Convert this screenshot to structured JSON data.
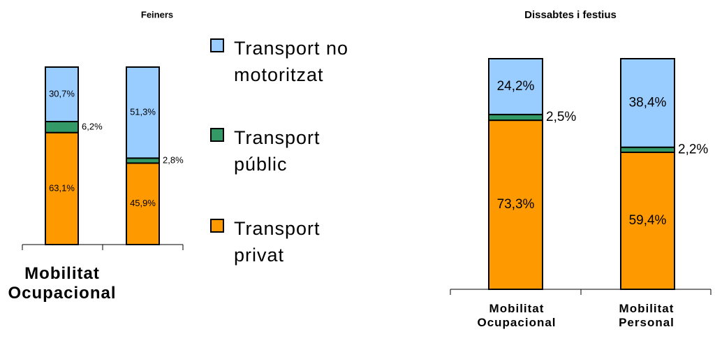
{
  "chart_data": [
    {
      "type": "stacked_bar",
      "title": "Feiners",
      "categories": [
        "Mobilitat Ocupacional",
        null
      ],
      "ylim": [
        0,
        100
      ],
      "series": [
        {
          "name": "Transport privat",
          "color": "#ff9900",
          "values": [
            63.1,
            45.9
          ],
          "value_labels": [
            "63,1%",
            "45,9%"
          ]
        },
        {
          "name": "Transport públic",
          "color": "#339966",
          "values": [
            6.2,
            2.8
          ],
          "value_labels": [
            "6,2%",
            "2,8%"
          ]
        },
        {
          "name": "Transport no motoritzat",
          "color": "#99ccff",
          "values": [
            30.7,
            51.3
          ],
          "value_labels": [
            "30,7%",
            "51,3%"
          ]
        }
      ]
    },
    {
      "type": "stacked_bar",
      "title": "Dissabtes i festius",
      "categories": [
        "Mobilitat Ocupacional",
        "Mobilitat Personal"
      ],
      "ylim": [
        0,
        100
      ],
      "series": [
        {
          "color": "#ff9900",
          "values": [
            73.3,
            59.4
          ],
          "value_labels": [
            "73,3%",
            "59,4%"
          ]
        },
        {
          "color": "#339966",
          "values": [
            2.5,
            2.2
          ],
          "value_labels": [
            "2,5%",
            "2,2%"
          ]
        },
        {
          "color": "#99ccff",
          "values": [
            24.2,
            38.4
          ],
          "value_labels": [
            "24,2%",
            "38,4%"
          ]
        }
      ]
    }
  ]
}
